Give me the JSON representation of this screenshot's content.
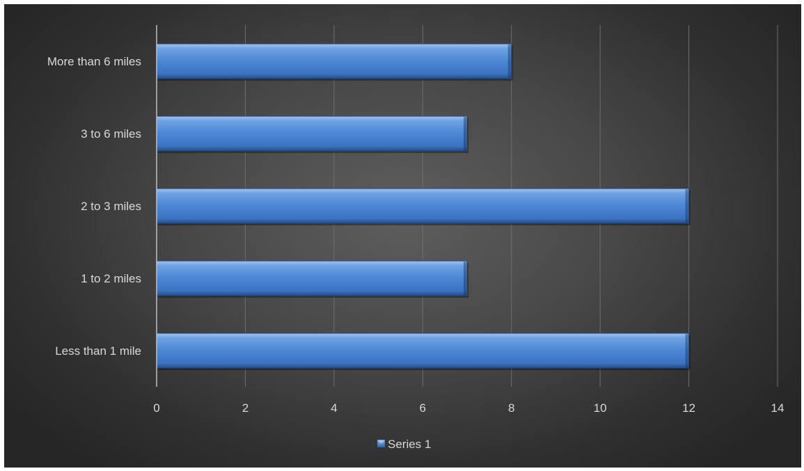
{
  "chart_data": {
    "type": "bar",
    "orientation": "horizontal",
    "categories": [
      "Less than 1 mile",
      "1 to 2 miles",
      "2 to 3 miles",
      "3 to 6 miles",
      "More than 6 miles"
    ],
    "series": [
      {
        "name": "Series 1",
        "values": [
          12,
          7,
          12,
          7,
          8
        ]
      }
    ],
    "xlim": [
      0,
      14
    ],
    "x_ticks": [
      "0",
      "2",
      "4",
      "6",
      "8",
      "10",
      "12",
      "14"
    ],
    "grid": "vertical",
    "legend_position": "bottom",
    "colors": {
      "bar": "#4a86d4",
      "bar_light": "#8cb8ee",
      "bar_dark": "#2a5896",
      "grid": "#6e6e6e",
      "axis": "#bfbfbf",
      "text": "#d9d9d9"
    }
  }
}
